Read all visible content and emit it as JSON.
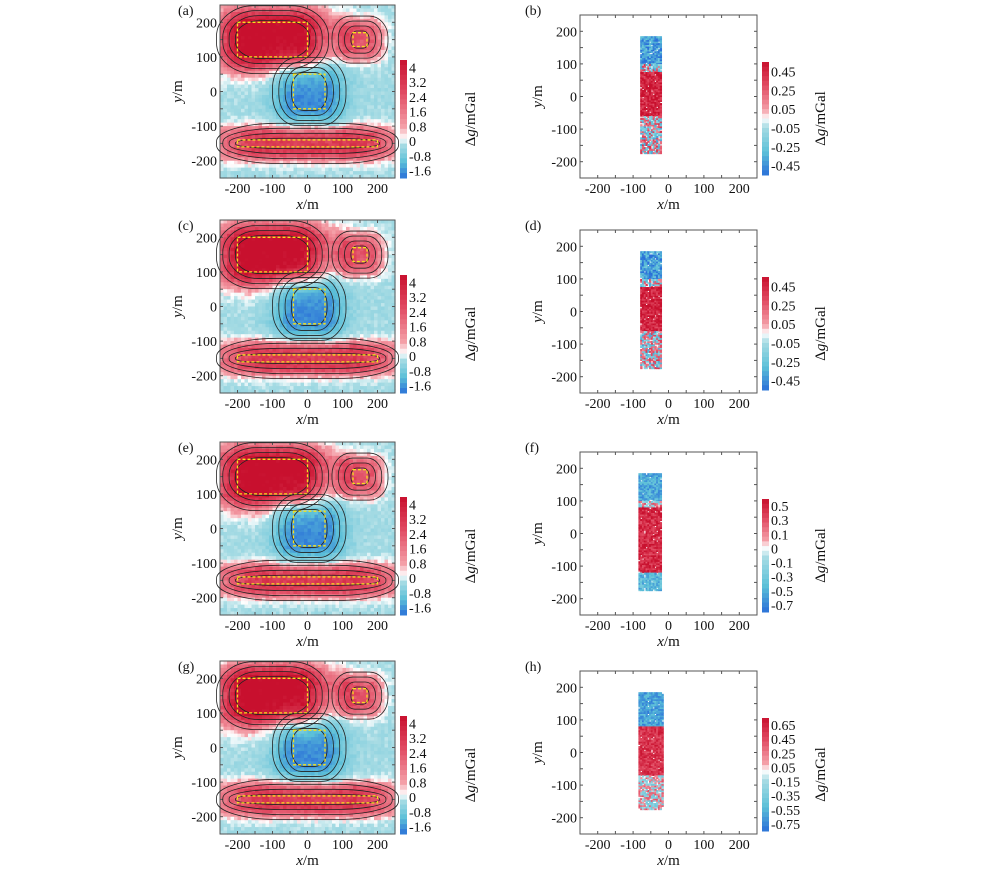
{
  "figure": {
    "colors": {
      "red_dark": "#c8102e",
      "red_mid": "#e04860",
      "red_light": "#f4a0a8",
      "white": "#ffffff",
      "cyan_light": "#a8dce4",
      "cyan_mid": "#5cc0d8",
      "blue_dark": "#2a70d8",
      "contour_line": "#222222",
      "outline_box": "#f5e11c",
      "axis": "#555555"
    }
  },
  "chart_data": [
    {
      "id": "a",
      "panel_label": "(a)",
      "type": "heatmap",
      "subtype": "contour-map",
      "xlabel": "x/m",
      "ylabel": "y/m",
      "xlim": [
        -250,
        250
      ],
      "ylim": [
        -250,
        250
      ],
      "xticks": [
        "-200",
        "-100",
        "0",
        "100",
        "200"
      ],
      "yticks": [
        "200",
        "100",
        "0",
        "-100",
        "-200"
      ],
      "colorbar": {
        "label": "Δg/mGal",
        "ticks": [
          "4",
          "3.2",
          "2.4",
          "1.6",
          "0.8",
          "0",
          "-0.8",
          "-1.6"
        ],
        "range": [
          -2.0,
          4.0
        ]
      },
      "anomalies": [
        {
          "shape": "rect",
          "x": [
            -200,
            0
          ],
          "y": [
            100,
            200
          ],
          "peak": 4.0,
          "sign": "positive"
        },
        {
          "shape": "rect",
          "x": [
            130,
            170
          ],
          "y": [
            130,
            170
          ],
          "peak": 2.4,
          "sign": "positive"
        },
        {
          "shape": "rect",
          "x": [
            -40,
            50
          ],
          "y": [
            -50,
            50
          ],
          "peak": -1.6,
          "sign": "negative"
        },
        {
          "shape": "rect",
          "x": [
            -200,
            200
          ],
          "y": [
            -160,
            -140
          ],
          "peak": 3.0,
          "sign": "positive"
        }
      ]
    },
    {
      "id": "b",
      "panel_label": "(b)",
      "type": "heatmap",
      "subtype": "residual-map",
      "xlabel": "x/m",
      "ylabel": "y/m",
      "xlim": [
        -250,
        250
      ],
      "ylim": [
        -250,
        250
      ],
      "xticks": [
        "-200",
        "-100",
        "0",
        "100",
        "200"
      ],
      "yticks": [
        "200",
        "100",
        "0",
        "-100",
        "-200"
      ],
      "colorbar": {
        "label": "Δg/mGal",
        "ticks": [
          "0.45",
          "0.25",
          "0.05",
          "-0.05",
          "-0.25",
          "-0.45"
        ],
        "range": [
          -0.55,
          0.55
        ]
      },
      "strip": {
        "x": [
          -80,
          -20
        ],
        "y": [
          -175,
          185
        ]
      },
      "segments": [
        {
          "y": [
            100,
            185
          ],
          "sign": "negative",
          "value": -0.3
        },
        {
          "y": [
            75,
            100
          ],
          "sign": "mixed",
          "value": -0.1
        },
        {
          "y": [
            -60,
            75
          ],
          "sign": "positive",
          "value": 0.35
        },
        {
          "y": [
            -175,
            -60
          ],
          "sign": "mixed",
          "value": -0.15
        }
      ]
    },
    {
      "id": "c",
      "panel_label": "(c)",
      "type": "heatmap",
      "subtype": "contour-map",
      "xlabel": "x/m",
      "ylabel": "y/m",
      "xlim": [
        -250,
        250
      ],
      "ylim": [
        -250,
        250
      ],
      "xticks": [
        "-200",
        "-100",
        "0",
        "100",
        "200"
      ],
      "yticks": [
        "200",
        "100",
        "0",
        "-100",
        "-200"
      ],
      "colorbar": {
        "label": "Δg/mGal",
        "ticks": [
          "4",
          "3.2",
          "2.4",
          "1.6",
          "0.8",
          "0",
          "-0.8",
          "-1.6"
        ],
        "range": [
          -2.0,
          4.0
        ]
      },
      "anomalies": [
        {
          "shape": "rect",
          "x": [
            -200,
            0
          ],
          "y": [
            100,
            200
          ],
          "peak": 4.0,
          "sign": "positive"
        },
        {
          "shape": "rect",
          "x": [
            130,
            170
          ],
          "y": [
            130,
            170
          ],
          "peak": 2.4,
          "sign": "positive"
        },
        {
          "shape": "rect",
          "x": [
            -40,
            50
          ],
          "y": [
            -50,
            50
          ],
          "peak": -1.6,
          "sign": "negative"
        },
        {
          "shape": "rect",
          "x": [
            -200,
            200
          ],
          "y": [
            -160,
            -140
          ],
          "peak": 3.0,
          "sign": "positive"
        }
      ]
    },
    {
      "id": "d",
      "panel_label": "(d)",
      "type": "heatmap",
      "subtype": "residual-map",
      "xlabel": "x/m",
      "ylabel": "y/m",
      "xlim": [
        -250,
        250
      ],
      "ylim": [
        -250,
        250
      ],
      "xticks": [
        "-200",
        "-100",
        "0",
        "100",
        "200"
      ],
      "yticks": [
        "200",
        "100",
        "0",
        "-100",
        "-200"
      ],
      "colorbar": {
        "label": "Δg/mGal",
        "ticks": [
          "0.45",
          "0.25",
          "0.05",
          "-0.05",
          "-0.25",
          "-0.45"
        ],
        "range": [
          -0.55,
          0.55
        ]
      },
      "strip": {
        "x": [
          -80,
          -20
        ],
        "y": [
          -175,
          185
        ]
      },
      "segments": [
        {
          "y": [
            100,
            185
          ],
          "sign": "negative",
          "value": -0.3
        },
        {
          "y": [
            75,
            100
          ],
          "sign": "mixed",
          "value": -0.1
        },
        {
          "y": [
            -60,
            75
          ],
          "sign": "positive",
          "value": 0.35
        },
        {
          "y": [
            -175,
            -60
          ],
          "sign": "mixed",
          "value": -0.15
        }
      ]
    },
    {
      "id": "e",
      "panel_label": "(e)",
      "type": "heatmap",
      "subtype": "contour-map",
      "xlabel": "x/m",
      "ylabel": "y/m",
      "xlim": [
        -250,
        250
      ],
      "ylim": [
        -250,
        250
      ],
      "xticks": [
        "-200",
        "-100",
        "0",
        "100",
        "200"
      ],
      "yticks": [
        "200",
        "100",
        "0",
        "-100",
        "-200"
      ],
      "colorbar": {
        "label": "Δg/mGal",
        "ticks": [
          "4",
          "3.2",
          "2.4",
          "1.6",
          "0.8",
          "0",
          "-0.8",
          "-1.6"
        ],
        "range": [
          -2.0,
          4.0
        ]
      },
      "anomalies": [
        {
          "shape": "rect",
          "x": [
            -200,
            0
          ],
          "y": [
            100,
            200
          ],
          "peak": 4.0,
          "sign": "positive"
        },
        {
          "shape": "rect",
          "x": [
            130,
            170
          ],
          "y": [
            130,
            170
          ],
          "peak": 2.4,
          "sign": "positive"
        },
        {
          "shape": "rect",
          "x": [
            -40,
            50
          ],
          "y": [
            -50,
            50
          ],
          "peak": -1.6,
          "sign": "negative"
        },
        {
          "shape": "rect",
          "x": [
            -200,
            200
          ],
          "y": [
            -160,
            -140
          ],
          "peak": 3.0,
          "sign": "positive"
        }
      ]
    },
    {
      "id": "f",
      "panel_label": "(f)",
      "type": "heatmap",
      "subtype": "residual-map",
      "xlabel": "x/m",
      "ylabel": "y/m",
      "xlim": [
        -250,
        250
      ],
      "ylim": [
        -250,
        250
      ],
      "xticks": [
        "-200",
        "-100",
        "0",
        "100",
        "200"
      ],
      "yticks": [
        "200",
        "100",
        "0",
        "-100",
        "-200"
      ],
      "colorbar": {
        "label": "Δg/mGal",
        "ticks": [
          "0.5",
          "0.3",
          "0.1",
          "0",
          "-0.1",
          "-0.3",
          "-0.5",
          "-0.7"
        ],
        "range": [
          -0.8,
          0.6
        ]
      },
      "strip": {
        "x": [
          -85,
          -20
        ],
        "y": [
          -175,
          185
        ]
      },
      "segments": [
        {
          "y": [
            100,
            185
          ],
          "sign": "negative",
          "value": -0.4
        },
        {
          "y": [
            80,
            100
          ],
          "sign": "mixed",
          "value": 0.0
        },
        {
          "y": [
            -120,
            80
          ],
          "sign": "positive",
          "value": 0.35
        },
        {
          "y": [
            -175,
            -120
          ],
          "sign": "negative",
          "value": -0.35
        }
      ]
    },
    {
      "id": "g",
      "panel_label": "(g)",
      "type": "heatmap",
      "subtype": "contour-map",
      "xlabel": "x/m",
      "ylabel": "y/m",
      "xlim": [
        -250,
        250
      ],
      "ylim": [
        -250,
        250
      ],
      "xticks": [
        "-200",
        "-100",
        "0",
        "100",
        "200"
      ],
      "yticks": [
        "200",
        "100",
        "0",
        "-100",
        "-200"
      ],
      "colorbar": {
        "label": "Δg/mGal",
        "ticks": [
          "4",
          "3.2",
          "2.4",
          "1.6",
          "0.8",
          "0",
          "-0.8",
          "-1.6"
        ],
        "range": [
          -2.0,
          4.0
        ]
      },
      "anomalies": [
        {
          "shape": "rect",
          "x": [
            -200,
            0
          ],
          "y": [
            100,
            200
          ],
          "peak": 4.0,
          "sign": "positive"
        },
        {
          "shape": "rect",
          "x": [
            130,
            170
          ],
          "y": [
            130,
            170
          ],
          "peak": 2.4,
          "sign": "positive"
        },
        {
          "shape": "rect",
          "x": [
            -40,
            50
          ],
          "y": [
            -50,
            50
          ],
          "peak": -1.6,
          "sign": "negative"
        },
        {
          "shape": "rect",
          "x": [
            -200,
            200
          ],
          "y": [
            -160,
            -140
          ],
          "peak": 3.0,
          "sign": "positive"
        }
      ]
    },
    {
      "id": "h",
      "panel_label": "(h)",
      "type": "heatmap",
      "subtype": "residual-map",
      "xlabel": "x/m",
      "ylabel": "y/m",
      "xlim": [
        -250,
        250
      ],
      "ylim": [
        -250,
        250
      ],
      "xticks": [
        "-200",
        "-100",
        "0",
        "100",
        "200"
      ],
      "yticks": [
        "200",
        "100",
        "0",
        "-100",
        "-200"
      ],
      "colorbar": {
        "label": "Δg/mGal",
        "ticks": [
          "0.65",
          "0.45",
          "0.25",
          "0.05",
          "-0.15",
          "-0.35",
          "-0.55",
          "-0.75"
        ],
        "range": [
          -0.85,
          0.75
        ]
      },
      "strip": {
        "x": [
          -85,
          -15
        ],
        "y": [
          -175,
          185
        ]
      },
      "segments": [
        {
          "y": [
            80,
            185
          ],
          "sign": "negative",
          "value": -0.45
        },
        {
          "y": [
            -70,
            80
          ],
          "sign": "positive",
          "value": 0.4
        },
        {
          "y": [
            -175,
            -70
          ],
          "sign": "mixed",
          "value": 0.0
        }
      ]
    }
  ]
}
